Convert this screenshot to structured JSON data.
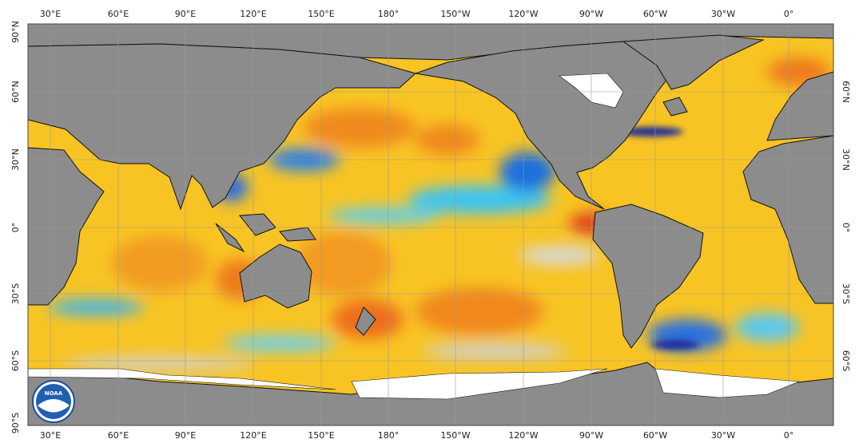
{
  "map": {
    "top_labels": [
      "30°E",
      "60°E",
      "90°E",
      "120°E",
      "150°E",
      "180°",
      "150°W",
      "120°W",
      "90°W",
      "60°W",
      "30°W",
      "0°"
    ],
    "bottom_labels": [
      "30°E",
      "60°E",
      "90°E",
      "120°E",
      "150°E",
      "180°",
      "150°W",
      "120°W",
      "90°W",
      "60°W",
      "30°W",
      "0°"
    ],
    "left_labels": [
      "90°N",
      "60°N",
      "30°N",
      "0°",
      "30°S",
      "60°S",
      "90°S"
    ],
    "right_labels": [
      "60°N",
      "30°N",
      "0°",
      "30°S",
      "60°S"
    ],
    "logo": "NOAA"
  }
}
